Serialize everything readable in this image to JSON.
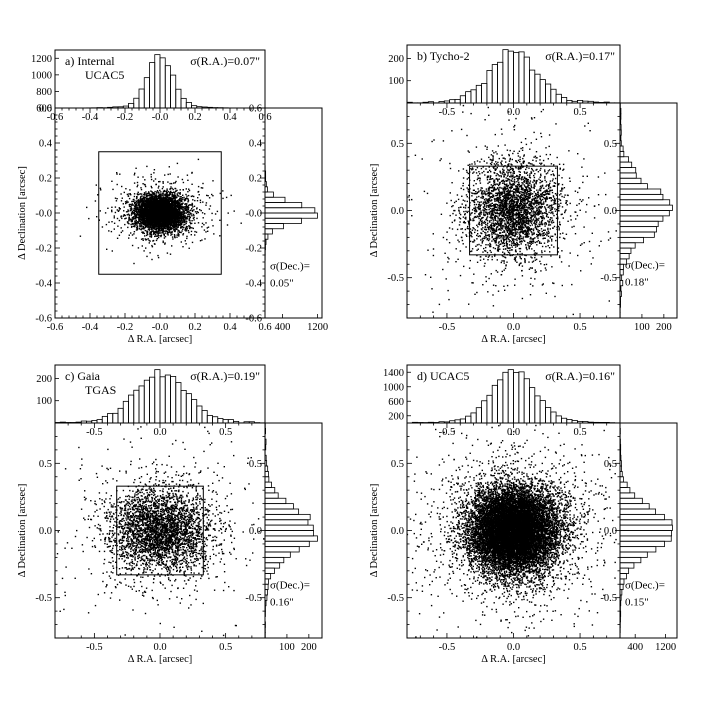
{
  "chart_data": [
    {
      "type": "scatter",
      "panel_label": "a) Internal",
      "panel_label_2": "UCAC5",
      "sigma_ra": "σ(R.A.)=0.07\"",
      "sigma_dec": "σ(Dec.)=",
      "sigma_dec_value": "0.05\"",
      "xlabel": "Δ R.A. [arcsec]",
      "ylabel": "Δ Declination [arcsec]",
      "xlim": [
        -0.6,
        0.6
      ],
      "ylim": [
        -0.6,
        0.6
      ],
      "main_xticks": [
        "-0.6",
        "-0.4",
        "-0.2",
        "-0.0",
        "0.2",
        "0.4",
        "0.6"
      ],
      "main_yticks": [
        "-0.6",
        "-0.4",
        "-0.2",
        "-0.0",
        "0.2",
        "0.4",
        "0.6"
      ],
      "histx_ylim": [
        600,
        1300
      ],
      "histx_yticks": [
        "1200",
        "1000",
        "800",
        "600"
      ],
      "histy_xlim": [
        0,
        1300
      ],
      "histy_xticks": [
        "400",
        "1200"
      ],
      "box": [
        -0.35,
        0.35,
        -0.35,
        0.35
      ],
      "scatter_points": 5000,
      "sigma_x": 0.07,
      "sigma_y": 0.05
    },
    {
      "type": "scatter",
      "panel_label": "b) Tycho-2",
      "panel_label_2": "",
      "sigma_ra": "σ(R.A.)=0.17\"",
      "sigma_dec": "σ(Dec.)=",
      "sigma_dec_value": "0.18\"",
      "xlabel": "Δ R.A. [arcsec]",
      "ylabel": "Δ Declination [arcsec]",
      "xlim": [
        -0.8,
        0.8
      ],
      "ylim": [
        -0.8,
        0.8
      ],
      "main_xticks": [
        "-0.5",
        "0.0",
        "0.5"
      ],
      "main_yticks": [
        "-0.5",
        "0.0",
        "0.5"
      ],
      "histx_ylim": [
        0,
        260
      ],
      "histx_yticks": [
        "200",
        "100"
      ],
      "histy_xlim": [
        0,
        260
      ],
      "histy_xticks": [
        "100",
        "200"
      ],
      "box": [
        -0.33,
        0.33,
        -0.33,
        0.33
      ],
      "scatter_points": 3200,
      "sigma_x": 0.17,
      "sigma_y": 0.18
    },
    {
      "type": "scatter",
      "panel_label": "c) Gaia",
      "panel_label_2": "TGAS",
      "sigma_ra": "σ(R.A.)=0.19\"",
      "sigma_dec": "σ(Dec.)=",
      "sigma_dec_value": "0.16\"",
      "xlabel": "Δ R.A. [arcsec]",
      "ylabel": "Δ Declination [arcsec]",
      "xlim": [
        -0.8,
        0.8
      ],
      "ylim": [
        -0.8,
        0.8
      ],
      "main_xticks": [
        "-0.5",
        "0.0",
        "0.5"
      ],
      "main_yticks": [
        "-0.5",
        "0.0",
        "0.5"
      ],
      "histx_ylim": [
        0,
        260
      ],
      "histx_yticks": [
        "200",
        "100"
      ],
      "histy_xlim": [
        0,
        260
      ],
      "histy_xticks": [
        "100",
        "200"
      ],
      "box": [
        -0.33,
        0.33,
        -0.33,
        0.33
      ],
      "scatter_points": 3600,
      "sigma_x": 0.19,
      "sigma_y": 0.16
    },
    {
      "type": "scatter",
      "panel_label": "d) UCAC5",
      "panel_label_2": "",
      "sigma_ra": "σ(R.A.)=0.16\"",
      "sigma_dec": "σ(Dec.)=",
      "sigma_dec_value": "0.15\"",
      "xlabel": "Δ R.A. [arcsec]",
      "ylabel": "Δ Declination [arcsec]",
      "xlim": [
        -0.8,
        0.8
      ],
      "ylim": [
        -0.8,
        0.8
      ],
      "main_xticks": [
        "-0.5",
        "0.0",
        "0.5"
      ],
      "main_yticks": [
        "-0.5",
        "0.0",
        "0.5"
      ],
      "histx_ylim": [
        0,
        1600
      ],
      "histx_yticks": [
        "1400",
        "1000",
        "600",
        "200"
      ],
      "histy_xlim": [
        0,
        1500
      ],
      "histy_xticks": [
        "400",
        "1200"
      ],
      "box": null,
      "scatter_points": 14000,
      "sigma_x": 0.16,
      "sigma_y": 0.15
    }
  ]
}
